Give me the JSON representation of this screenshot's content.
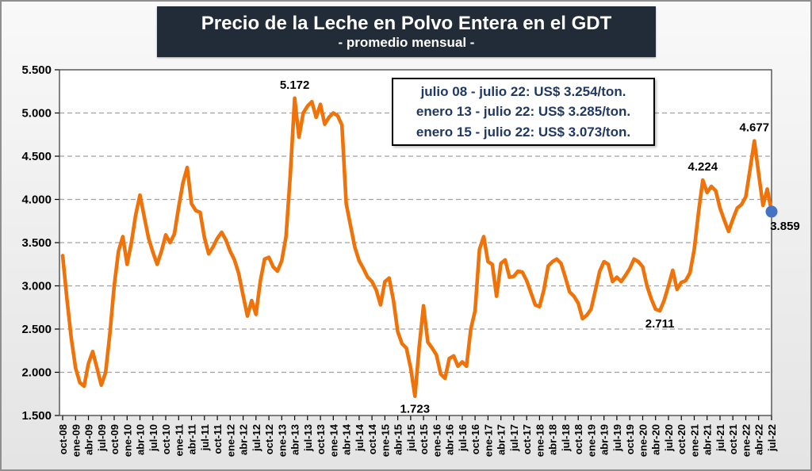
{
  "title": "Precio de la Leche en Polvo Entera en el GDT",
  "subtitle": "- promedio mensual -",
  "stats_box": {
    "lines": [
      "julio 08 - julio 22: US$ 3.254/ton.",
      "enero 13 - julio 22: US$ 3.285/ton.",
      "enero 15 - julio 22: US$ 3.073/ton."
    ]
  },
  "colors": {
    "line": "#f0730a",
    "marker": "#4472c4",
    "title_bar_bg": "#222b38",
    "stats_text": "#1f3864",
    "gridline": "#a0a0a0",
    "plot_border": "#404040"
  },
  "chart_data": {
    "type": "line",
    "title": "Precio de la Leche en Polvo Entera en el GDT - promedio mensual -",
    "x_start": "oct-08",
    "x_end": "jul-22",
    "frequency": "monthly",
    "unit": "US$/ton (miles)",
    "grid": "horizontal dashed",
    "legend": "none",
    "y_axis": {
      "min": 1.5,
      "max": 5.5,
      "tick_values": [
        5.5,
        5.0,
        4.5,
        4.0,
        3.5,
        3.0,
        2.5,
        2.0,
        1.5
      ],
      "tick_labels": [
        "5.500",
        "5.000",
        "4.500",
        "4.000",
        "3.500",
        "3.000",
        "2.500",
        "2.000",
        "1.500"
      ]
    },
    "x_axis": {
      "tick_every": 3,
      "tick_labels": [
        "oct-08",
        "ene-09",
        "abr-09",
        "jul-09",
        "oct-09",
        "ene-10",
        "abr-10",
        "jul-10",
        "oct-10",
        "ene-11",
        "abr-11",
        "jul-11",
        "oct-11",
        "ene-12",
        "abr-12",
        "jul-12",
        "oct-12",
        "ene-13",
        "abr-13",
        "jul-13",
        "oct-13",
        "ene-14",
        "abr-14",
        "jul-14",
        "oct-14",
        "ene-15",
        "abr-15",
        "jul-15",
        "oct-15",
        "ene-16",
        "abr-16",
        "jul-16",
        "oct-16",
        "ene-17",
        "abr-17",
        "jul-17",
        "oct-17",
        "ene-18",
        "abr-18",
        "jul-18",
        "oct-18",
        "ene-19",
        "abr-19",
        "jul-19",
        "oct-19",
        "ene-20",
        "abr-20",
        "jul-20",
        "oct-20",
        "ene-21",
        "abr-21",
        "jul-21",
        "oct-21",
        "ene-22",
        "abr-22",
        "jul-22"
      ]
    },
    "values": [
      3.35,
      2.85,
      2.4,
      2.05,
      1.88,
      1.84,
      2.1,
      2.24,
      2.05,
      1.85,
      2.0,
      2.45,
      3.0,
      3.4,
      3.57,
      3.25,
      3.5,
      3.82,
      4.05,
      3.8,
      3.55,
      3.39,
      3.25,
      3.4,
      3.59,
      3.5,
      3.6,
      3.91,
      4.19,
      4.37,
      3.95,
      3.87,
      3.85,
      3.56,
      3.37,
      3.45,
      3.55,
      3.62,
      3.53,
      3.4,
      3.3,
      3.14,
      2.89,
      2.65,
      2.83,
      2.67,
      3.05,
      3.31,
      3.33,
      3.22,
      3.17,
      3.29,
      3.57,
      4.3,
      5.172,
      4.72,
      5.0,
      5.08,
      5.13,
      4.95,
      5.1,
      4.87,
      4.95,
      5.0,
      4.97,
      4.86,
      3.95,
      3.7,
      3.45,
      3.29,
      3.2,
      3.1,
      3.05,
      2.95,
      2.78,
      3.05,
      3.09,
      2.83,
      2.47,
      2.33,
      2.28,
      2.05,
      1.723,
      2.3,
      2.77,
      2.35,
      2.28,
      2.2,
      1.98,
      1.93,
      2.16,
      2.19,
      2.07,
      2.12,
      2.07,
      2.5,
      2.71,
      3.42,
      3.57,
      3.28,
      3.25,
      2.88,
      3.26,
      3.3,
      3.1,
      3.11,
      3.17,
      3.16,
      3.06,
      2.92,
      2.78,
      2.76,
      2.95,
      3.23,
      3.28,
      3.31,
      3.26,
      3.1,
      2.93,
      2.88,
      2.8,
      2.62,
      2.66,
      2.73,
      2.95,
      3.17,
      3.28,
      3.25,
      3.05,
      3.1,
      3.05,
      3.12,
      3.2,
      3.31,
      3.28,
      3.22,
      3.0,
      2.85,
      2.73,
      2.711,
      2.83,
      3.0,
      3.18,
      2.96,
      3.04,
      3.06,
      3.15,
      3.42,
      3.85,
      4.224,
      4.08,
      4.15,
      4.1,
      3.9,
      3.76,
      3.63,
      3.77,
      3.9,
      3.94,
      4.03,
      4.35,
      4.677,
      4.3,
      3.93,
      4.12,
      3.859
    ],
    "annotations": [
      {
        "label": "5.172",
        "month": "abr-13",
        "index": 54,
        "placement": "above"
      },
      {
        "label": "1.723",
        "month": "ago-15",
        "index": 82,
        "placement": "below"
      },
      {
        "label": "2.711",
        "month": "may-20",
        "index": 139,
        "placement": "below"
      },
      {
        "label": "4.224",
        "month": "mar-21",
        "index": 149,
        "placement": "above"
      },
      {
        "label": "4.677",
        "month": "mar-22",
        "index": 161,
        "placement": "above"
      },
      {
        "label": "3.859",
        "month": "jul-22",
        "index": 165,
        "placement": "below-right"
      }
    ],
    "last_point": {
      "index": 165,
      "marker": "circle"
    }
  }
}
